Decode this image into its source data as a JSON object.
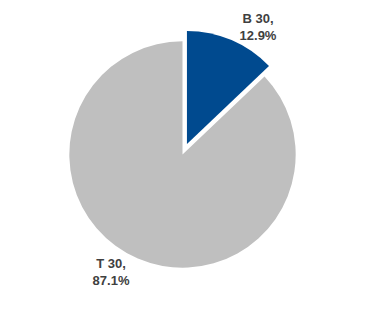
{
  "chart_data": {
    "type": "pie",
    "categories": [
      "B 30,",
      "T 30,"
    ],
    "values": [
      12.9,
      87.1
    ],
    "value_labels": [
      "12.9%",
      "87.1%"
    ],
    "colors": [
      "#004a8f",
      "#bfbfbf"
    ],
    "data_labels": true
  }
}
